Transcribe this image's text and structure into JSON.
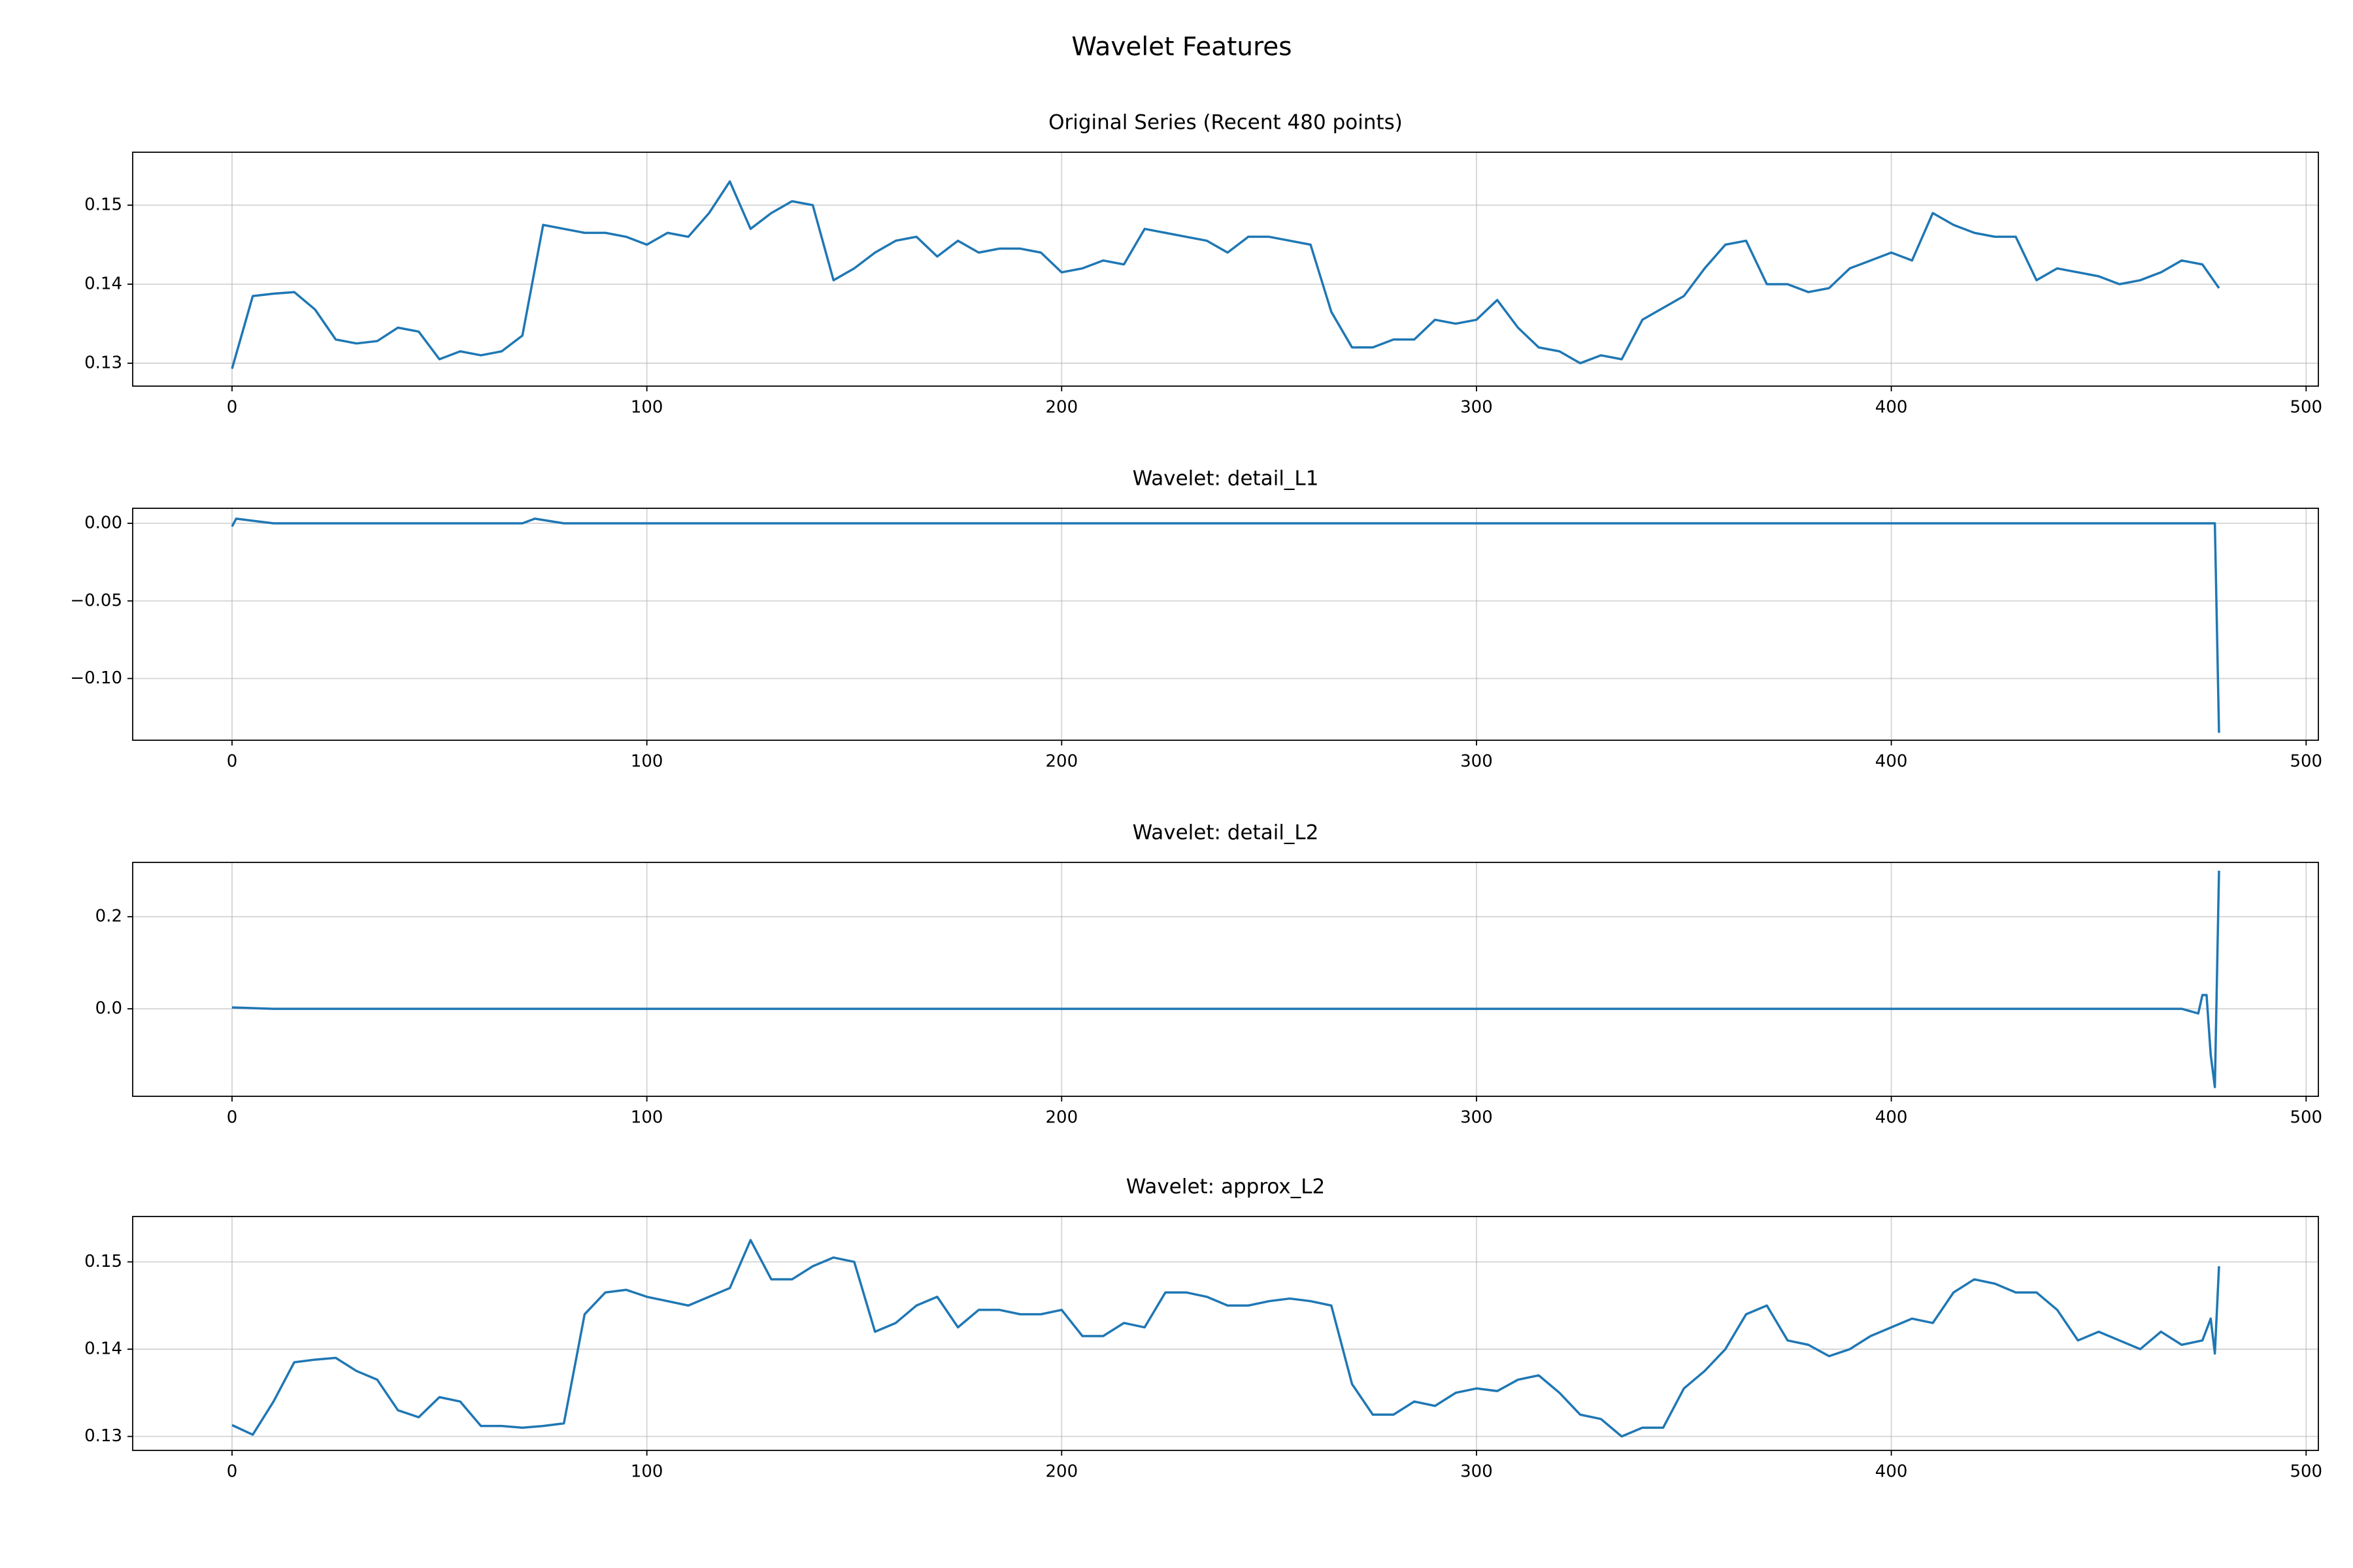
{
  "title": "Wavelet Features",
  "chart_data": [
    {
      "type": "line",
      "title": "Original Series (Recent 480 points)",
      "color": "#1f77b4",
      "grid": true,
      "xlim": [
        -23.95,
        502.95
      ],
      "xticks": [
        0,
        100,
        200,
        300,
        400,
        500
      ],
      "ylim": [
        0.1271,
        0.1567
      ],
      "yticks": [
        0.13,
        0.14,
        0.15
      ],
      "x": [
        0,
        5,
        10,
        15,
        20,
        25,
        30,
        35,
        40,
        45,
        50,
        55,
        60,
        65,
        70,
        75,
        80,
        85,
        90,
        95,
        100,
        105,
        110,
        115,
        120,
        125,
        130,
        135,
        140,
        145,
        150,
        155,
        160,
        165,
        170,
        175,
        180,
        185,
        190,
        195,
        200,
        205,
        210,
        215,
        220,
        225,
        230,
        235,
        240,
        245,
        250,
        255,
        260,
        265,
        270,
        275,
        280,
        285,
        290,
        295,
        300,
        305,
        310,
        315,
        320,
        325,
        330,
        335,
        340,
        345,
        350,
        355,
        360,
        365,
        370,
        375,
        380,
        385,
        390,
        395,
        400,
        405,
        410,
        415,
        420,
        425,
        430,
        435,
        440,
        445,
        450,
        455,
        460,
        465,
        470,
        475,
        479
      ],
      "values": [
        0.1293,
        0.1385,
        0.1388,
        0.139,
        0.1368,
        0.133,
        0.1325,
        0.1328,
        0.1345,
        0.134,
        0.1305,
        0.1315,
        0.131,
        0.1315,
        0.1335,
        0.1475,
        0.147,
        0.1465,
        0.1465,
        0.146,
        0.145,
        0.1465,
        0.146,
        0.149,
        0.153,
        0.147,
        0.149,
        0.1505,
        0.15,
        0.1405,
        0.142,
        0.144,
        0.1455,
        0.146,
        0.1435,
        0.1455,
        0.144,
        0.1445,
        0.1445,
        0.144,
        0.1415,
        0.142,
        0.143,
        0.1425,
        0.147,
        0.1465,
        0.146,
        0.1455,
        0.144,
        0.146,
        0.146,
        0.1455,
        0.145,
        0.1365,
        0.132,
        0.132,
        0.133,
        0.133,
        0.1355,
        0.135,
        0.1355,
        0.138,
        0.1345,
        0.132,
        0.1315,
        0.13,
        0.131,
        0.1305,
        0.1355,
        0.137,
        0.1385,
        0.142,
        0.145,
        0.1455,
        0.14,
        0.14,
        0.139,
        0.1395,
        0.142,
        0.143,
        0.144,
        0.143,
        0.149,
        0.1475,
        0.1465,
        0.146,
        0.146,
        0.1405,
        0.142,
        0.1415,
        0.141,
        0.14,
        0.1405,
        0.1415,
        0.143,
        0.1425,
        0.1395
      ]
    },
    {
      "type": "line",
      "title": "Wavelet: detail_L1",
      "color": "#1f77b4",
      "grid": true,
      "xlim": [
        -23.95,
        502.95
      ],
      "xticks": [
        0,
        100,
        200,
        300,
        400,
        500
      ],
      "ylim": [
        -0.1398,
        0.0097
      ],
      "yticks": [
        {
          "value": -0.1,
          "label": "−0.10"
        },
        {
          "value": -0.05,
          "label": "−0.05"
        },
        {
          "value": 0,
          "label": "0.00"
        }
      ],
      "x": [
        0,
        1,
        10,
        20,
        30,
        40,
        50,
        60,
        70,
        73,
        80,
        90,
        100,
        110,
        120,
        130,
        140,
        150,
        160,
        170,
        180,
        190,
        200,
        210,
        220,
        230,
        240,
        250,
        260,
        270,
        280,
        290,
        300,
        310,
        320,
        330,
        340,
        350,
        360,
        370,
        380,
        390,
        400,
        410,
        420,
        430,
        440,
        450,
        460,
        470,
        478,
        479
      ],
      "values": [
        -0.002,
        0.003,
        0,
        0,
        0,
        0,
        0,
        0,
        0,
        0.003,
        0,
        0,
        0,
        0,
        0,
        0,
        0,
        0,
        0,
        0,
        0,
        0,
        0,
        0,
        0,
        0,
        0,
        0,
        0,
        0,
        0,
        0,
        0,
        0,
        0,
        0,
        0,
        0,
        0,
        0,
        0,
        0,
        0,
        0,
        0,
        0,
        0,
        0,
        0,
        0,
        0,
        -0.135
      ]
    },
    {
      "type": "line",
      "title": "Wavelet: detail_L2",
      "color": "#1f77b4",
      "grid": true,
      "xlim": [
        -23.95,
        502.95
      ],
      "xticks": [
        0,
        100,
        200,
        300,
        400,
        500
      ],
      "ylim": [
        -0.19,
        0.318
      ],
      "yticks": [
        {
          "value": 0,
          "label": "0.0"
        },
        0.2
      ],
      "x": [
        0,
        10,
        20,
        30,
        40,
        50,
        60,
        70,
        80,
        90,
        100,
        110,
        120,
        130,
        140,
        150,
        160,
        170,
        180,
        190,
        200,
        210,
        220,
        230,
        240,
        250,
        260,
        270,
        280,
        290,
        300,
        310,
        320,
        330,
        340,
        350,
        360,
        370,
        380,
        390,
        400,
        410,
        420,
        430,
        440,
        450,
        460,
        470,
        474,
        475,
        476,
        477,
        478,
        479
      ],
      "values": [
        0.003,
        0,
        0,
        0,
        0,
        0,
        0,
        0,
        0,
        0,
        0,
        0,
        0,
        0,
        0,
        0,
        0,
        0,
        0,
        0,
        0,
        0,
        0,
        0,
        0,
        0,
        0,
        0,
        0,
        0,
        0,
        0,
        0,
        0,
        0,
        0,
        0,
        0,
        0,
        0,
        0,
        0,
        0,
        0,
        0,
        0,
        0,
        0,
        -0.01,
        0.03,
        0.03,
        -0.1,
        -0.17,
        0.3
      ]
    },
    {
      "type": "line",
      "title": "Wavelet: approx_L2",
      "color": "#1f77b4",
      "grid": true,
      "xlim": [
        -23.95,
        502.95
      ],
      "xticks": [
        0,
        100,
        200,
        300,
        400,
        500
      ],
      "ylim": [
        0.1284,
        0.1552
      ],
      "yticks": [
        0.13,
        0.14,
        0.15
      ],
      "x": [
        0,
        5,
        10,
        15,
        20,
        25,
        30,
        35,
        40,
        45,
        50,
        55,
        60,
        65,
        70,
        75,
        80,
        85,
        90,
        95,
        100,
        105,
        110,
        115,
        120,
        125,
        130,
        135,
        140,
        145,
        150,
        155,
        160,
        165,
        170,
        175,
        180,
        185,
        190,
        195,
        200,
        205,
        210,
        215,
        220,
        225,
        230,
        235,
        240,
        245,
        250,
        255,
        260,
        265,
        270,
        275,
        280,
        285,
        290,
        295,
        300,
        305,
        310,
        315,
        320,
        325,
        330,
        335,
        340,
        345,
        350,
        355,
        360,
        365,
        370,
        375,
        380,
        385,
        390,
        395,
        400,
        405,
        410,
        415,
        420,
        425,
        430,
        435,
        440,
        445,
        450,
        455,
        460,
        465,
        470,
        475,
        477,
        478,
        479
      ],
      "values": [
        0.1313,
        0.1302,
        0.134,
        0.1385,
        0.1388,
        0.139,
        0.1375,
        0.1365,
        0.133,
        0.1322,
        0.1345,
        0.134,
        0.1312,
        0.1312,
        0.131,
        0.1312,
        0.1315,
        0.144,
        0.1465,
        0.1468,
        0.146,
        0.1455,
        0.145,
        0.146,
        0.147,
        0.1525,
        0.148,
        0.148,
        0.1495,
        0.1505,
        0.15,
        0.142,
        0.143,
        0.145,
        0.146,
        0.1425,
        0.1445,
        0.1445,
        0.144,
        0.144,
        0.1445,
        0.1415,
        0.1415,
        0.143,
        0.1425,
        0.1465,
        0.1465,
        0.146,
        0.145,
        0.145,
        0.1455,
        0.1458,
        0.1455,
        0.145,
        0.136,
        0.1325,
        0.1325,
        0.134,
        0.1335,
        0.135,
        0.1355,
        0.1352,
        0.1365,
        0.137,
        0.135,
        0.1325,
        0.132,
        0.13,
        0.131,
        0.131,
        0.1355,
        0.1375,
        0.14,
        0.144,
        0.145,
        0.141,
        0.1405,
        0.1392,
        0.14,
        0.1415,
        0.1425,
        0.1435,
        0.143,
        0.1465,
        0.148,
        0.1475,
        0.1465,
        0.1465,
        0.1445,
        0.141,
        0.142,
        0.141,
        0.14,
        0.142,
        0.1405,
        0.141,
        0.1435,
        0.1395,
        0.1495
      ]
    }
  ]
}
